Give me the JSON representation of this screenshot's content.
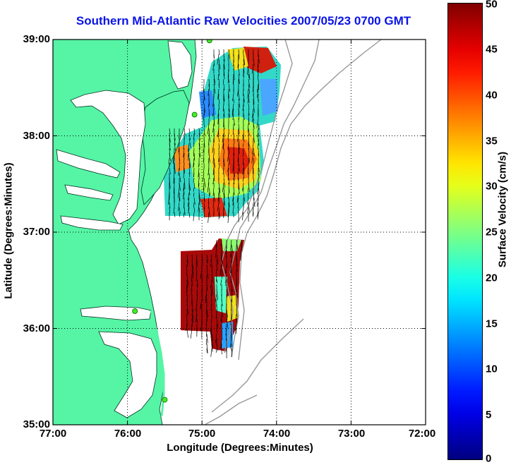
{
  "title": "Southern Mid-Atlantic Raw Velocities 2007/05/23 0700 GMT",
  "axes": {
    "x_title": "Longitude (Degrees:Minutes)",
    "y_title": "Latitude (Degrees:Minutes)",
    "x_ticks": [
      "77:00",
      "76:00",
      "75:00",
      "74:00",
      "73:00",
      "72:00"
    ],
    "y_ticks": [
      "39:00",
      "38:00",
      "37:00",
      "36:00",
      "35:00"
    ]
  },
  "colorbar": {
    "title": "Surface Velocity (cm/s)",
    "ticks": [
      "50",
      "45",
      "40",
      "35",
      "30",
      "25",
      "20",
      "15",
      "10",
      "5",
      "0"
    ],
    "min": 0,
    "max": 50,
    "colormap": "jet"
  },
  "map": {
    "lon_range": [
      -77,
      -72
    ],
    "lat_range": [
      35,
      39
    ],
    "land_color": "#55f5a5",
    "ocean_color": "#ffffff",
    "bathymetry_color": "#999999",
    "grid": "dotted",
    "radar_stations": [
      {
        "lon": -74.9,
        "lat": 38.99
      },
      {
        "lon": -75.1,
        "lat": 38.22
      },
      {
        "lon": -75.9,
        "lat": 36.18
      },
      {
        "lon": -75.5,
        "lat": 35.26
      }
    ]
  }
}
